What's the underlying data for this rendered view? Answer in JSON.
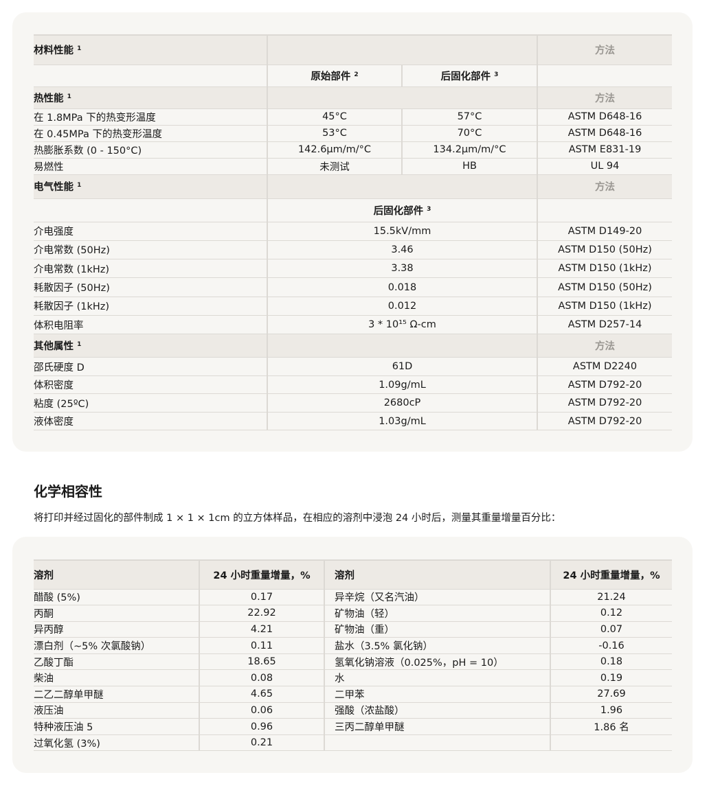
{
  "properties": {
    "material_title": "材料性能",
    "method_label": "方法",
    "col_original": "原始部件",
    "col_original_sup": "2",
    "col_postcured": "后固化部件",
    "col_postcured_sup": "3",
    "sup1": "1",
    "thermal": {
      "title": "热性能",
      "rows": [
        {
          "name": "在 1.8MPa 下的热变形温度",
          "original": "45°C",
          "postcured": "57°C",
          "method": "ASTM D648-16"
        },
        {
          "name": "在 0.45MPa 下的热变形温度",
          "original": "53°C",
          "postcured": "70°C",
          "method": "ASTM D648-16"
        },
        {
          "name": "热膨胀系数 (0 - 150°C)",
          "original": "142.6μm/m/°C",
          "postcured": "134.2μm/m/°C",
          "method": "ASTM E831-19"
        },
        {
          "name": "易燃性",
          "original": "未测试",
          "postcured": "HB",
          "method": "UL 94"
        }
      ]
    },
    "electrical": {
      "title": "电气性能",
      "rows": [
        {
          "name": "介电强度",
          "value": "15.5kV/mm",
          "method": "ASTM D149-20"
        },
        {
          "name": "介电常数 (50Hz)",
          "value": "3.46",
          "method": "ASTM D150 (50Hz)"
        },
        {
          "name": "介电常数 (1kHz)",
          "value": "3.38",
          "method": "ASTM D150 (1kHz)"
        },
        {
          "name": "耗散因子 (50Hz)",
          "value": "0.018",
          "method": "ASTM D150 (50Hz)"
        },
        {
          "name": "耗散因子 (1kHz)",
          "value": "0.012",
          "method": "ASTM D150 (1kHz)"
        },
        {
          "name": "体积电阻率",
          "value": "3 * 10¹⁵ Ω-cm",
          "method": "ASTM D257-14"
        }
      ]
    },
    "other": {
      "title": "其他属性",
      "rows": [
        {
          "name": "邵氏硬度 D",
          "value": "61D",
          "method": "ASTM D2240"
        },
        {
          "name": "体积密度",
          "value": "1.09g/mL",
          "method": "ASTM D792-20"
        },
        {
          "name": "粘度 (25ºC)",
          "value": "2680cP",
          "method": "ASTM D792-20"
        },
        {
          "name": "液体密度",
          "value": "1.03g/mL",
          "method": "ASTM D792-20"
        }
      ]
    }
  },
  "chemical": {
    "title": "化学相容性",
    "intro": "将打印并经过固化的部件制成 1 × 1 × 1cm 的立方体样品，在相应的溶剂中浸泡 24 小时后，测量其重量增量百分比：",
    "col_solvent": "溶剂",
    "col_gain": "24 小时重量增量，%",
    "rows": [
      {
        "s1": "醋酸 (5%)",
        "v1": "0.17",
        "s2": "异辛烷（又名汽油）",
        "v2": "21.24"
      },
      {
        "s1": "丙酮",
        "v1": "22.92",
        "s2": "矿物油（轻）",
        "v2": "0.12"
      },
      {
        "s1": "异丙醇",
        "v1": "4.21",
        "s2": "矿物油（重）",
        "v2": "0.07"
      },
      {
        "s1": "漂白剂（~5% 次氯酸钠）",
        "v1": "0.11",
        "s2": "盐水（3.5% 氯化钠）",
        "v2": "-0.16"
      },
      {
        "s1": "乙酸丁酯",
        "v1": "18.65",
        "s2": "氢氧化钠溶液（0.025%，pH = 10）",
        "v2": "0.18"
      },
      {
        "s1": "柴油",
        "v1": "0.08",
        "s2": "水",
        "v2": "0.19"
      },
      {
        "s1": "二乙二醇单甲醚",
        "v1": "4.65",
        "s2": "二甲苯",
        "v2": "27.69"
      },
      {
        "s1": "液压油",
        "v1": "0.06",
        "s2": "强酸（浓盐酸）",
        "v2": "1.96"
      },
      {
        "s1": "特种液压油 5",
        "v1": "0.96",
        "s2": "三丙二醇单甲醚",
        "v2": "1.86 名"
      },
      {
        "s1": "过氧化氢 (3%)",
        "v1": "0.21",
        "s2": "",
        "v2": ""
      }
    ]
  }
}
